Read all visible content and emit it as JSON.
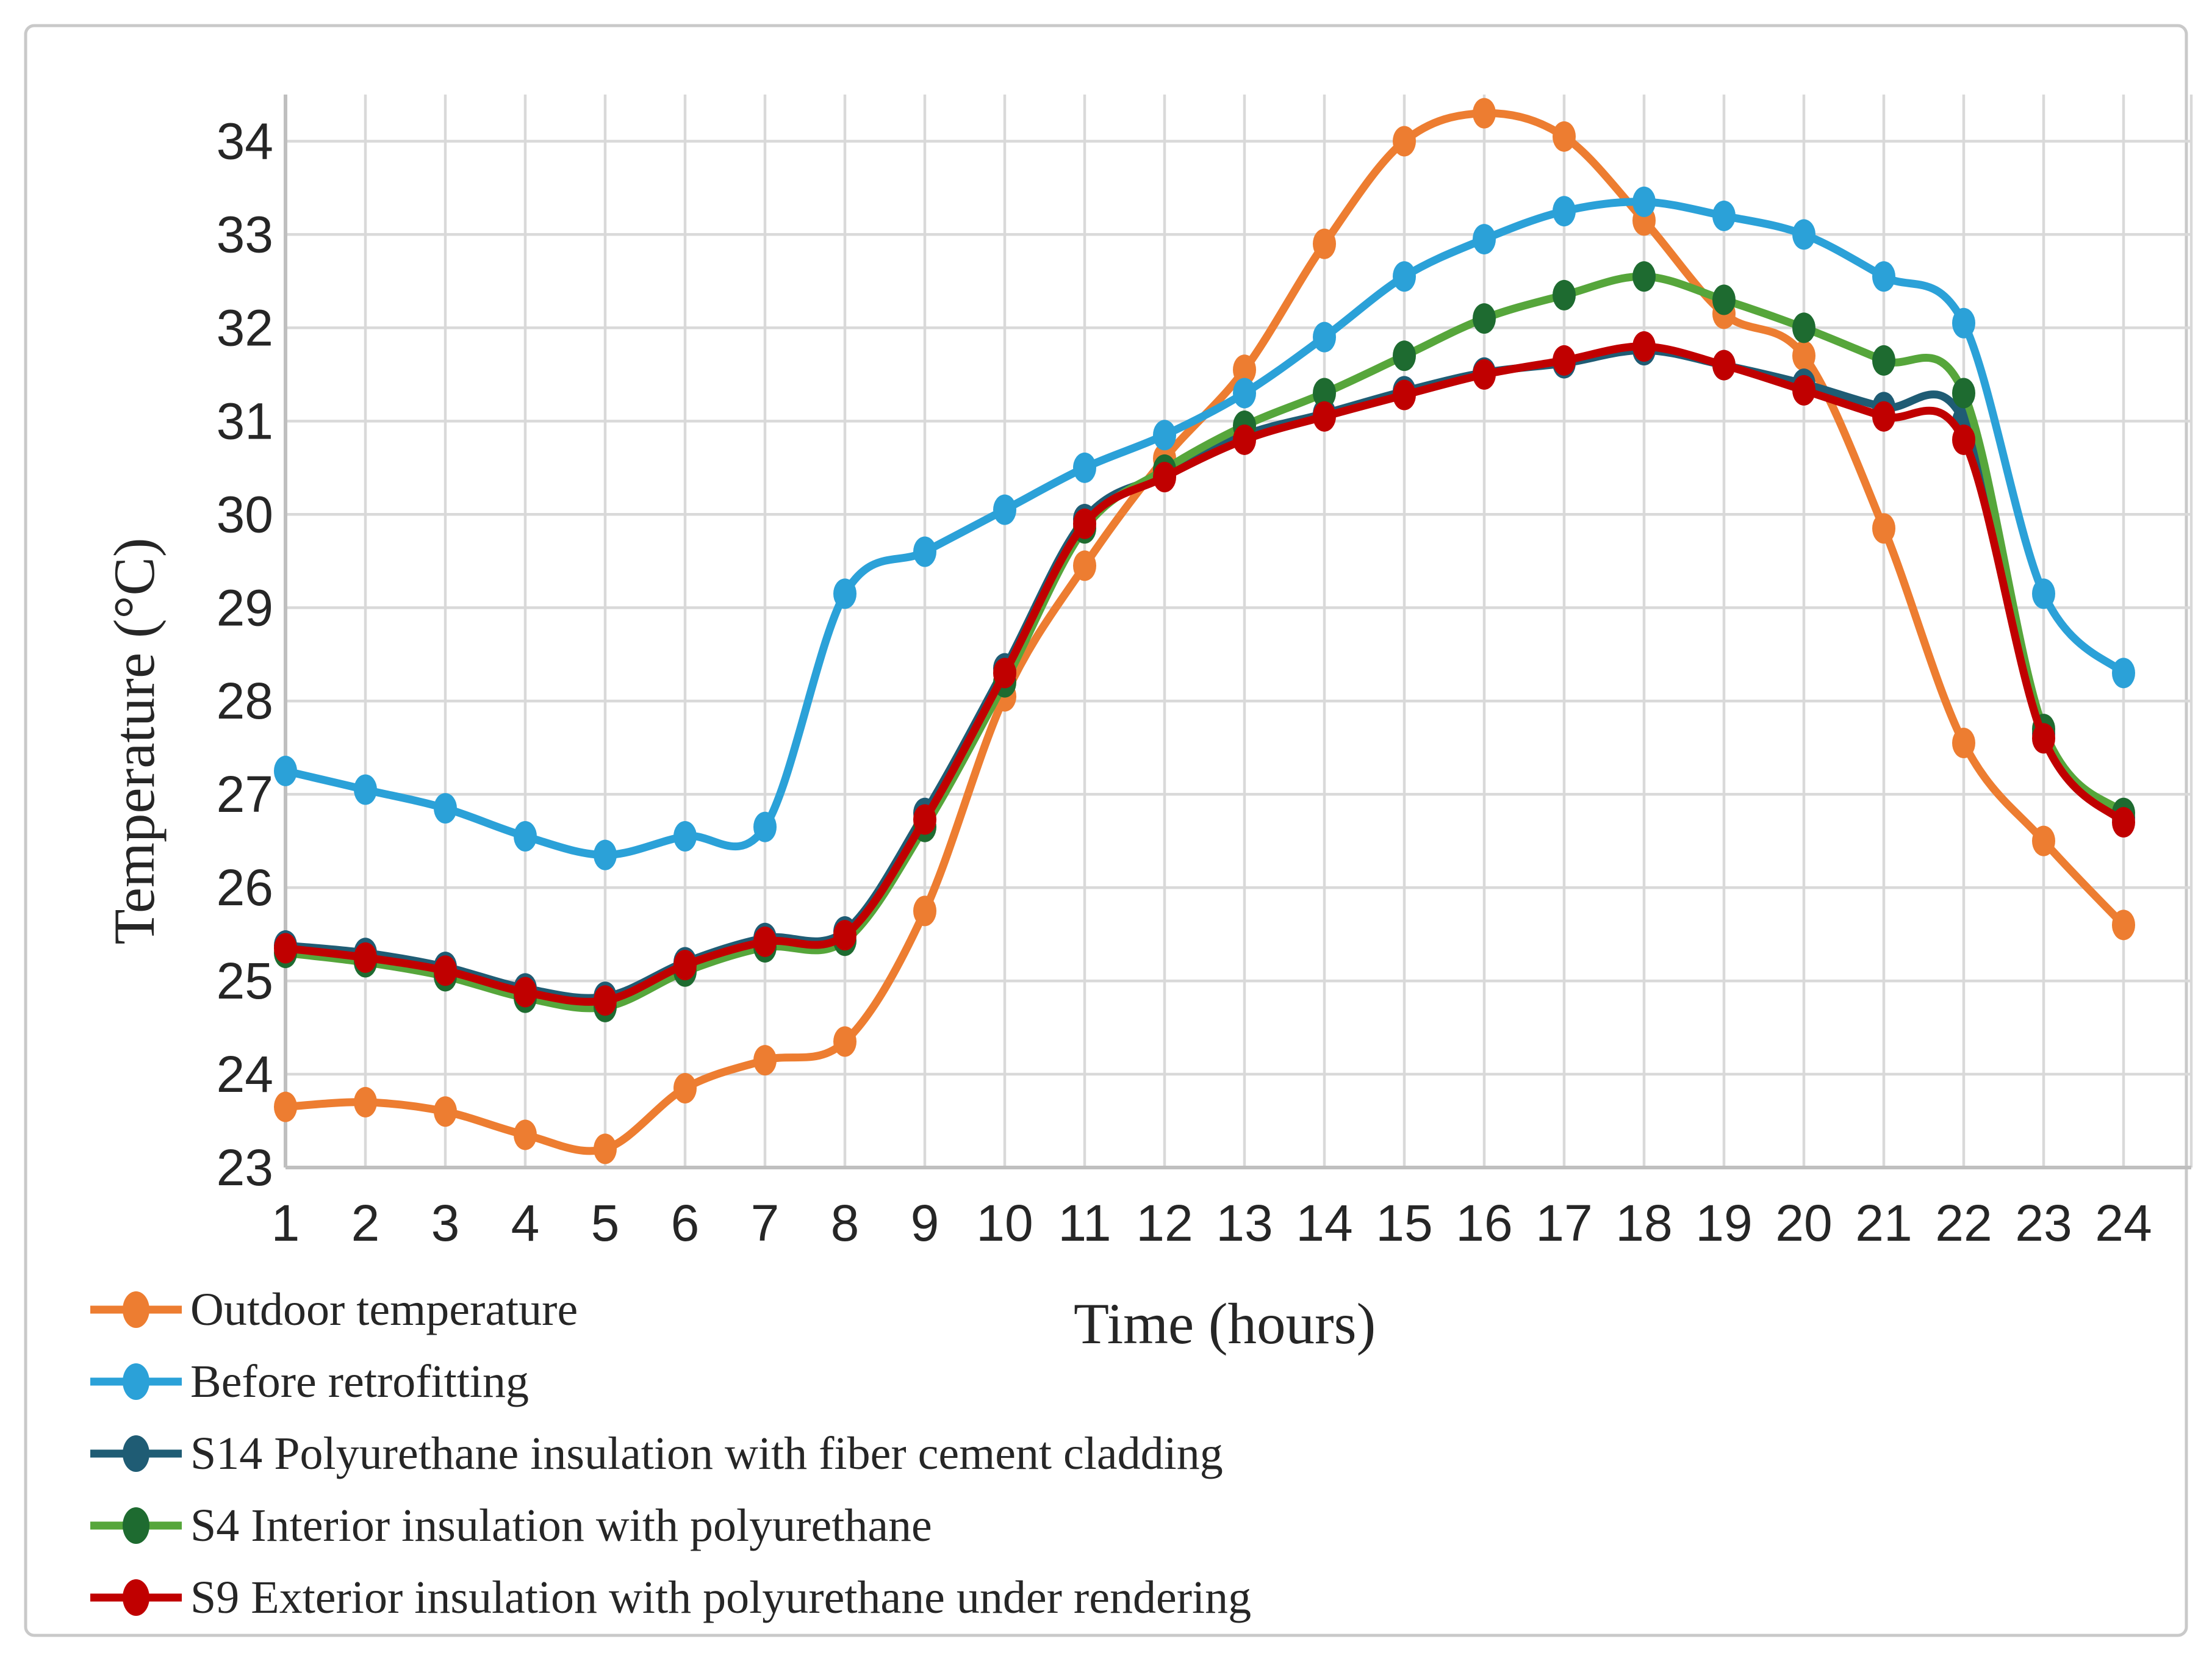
{
  "figure": {
    "background": "#ffffff",
    "border_color": "#c9c9c9"
  },
  "chart_data": {
    "type": "line",
    "smoothed": true,
    "title": "",
    "xlabel": "Time (hours)",
    "ylabel": "Temperature (°C)",
    "x": [
      1,
      2,
      3,
      4,
      5,
      6,
      7,
      8,
      9,
      10,
      11,
      12,
      13,
      14,
      15,
      16,
      17,
      18,
      19,
      20,
      21,
      22,
      23,
      24
    ],
    "x_tick_labels": [
      "1",
      "2",
      "3",
      "4",
      "5",
      "6",
      "7",
      "8",
      "9",
      "10",
      "11",
      "12",
      "13",
      "14",
      "15",
      "16",
      "17",
      "18",
      "19",
      "20",
      "21",
      "22",
      "23",
      "24"
    ],
    "y_ticks": [
      23,
      24,
      25,
      26,
      27,
      28,
      29,
      30,
      31,
      32,
      33,
      34
    ],
    "ylim": [
      23,
      34.5
    ],
    "grid": true,
    "grid_color": "#d9d9d9",
    "axis_color": "#bfbfbf",
    "legend_position": "bottom-left",
    "series": [
      {
        "name": "Outdoor temperature",
        "color": "#ED7D31",
        "marker_color": "#ED7D31",
        "values": [
          23.65,
          23.7,
          23.6,
          23.35,
          23.2,
          23.85,
          24.15,
          24.35,
          25.75,
          28.05,
          29.45,
          30.6,
          31.55,
          32.9,
          34.0,
          34.3,
          34.05,
          33.15,
          32.15,
          31.7,
          29.85,
          27.55,
          26.5,
          25.6
        ]
      },
      {
        "name": "Before retrofitting",
        "color": "#2BA1D8",
        "marker_color": "#2BA1D8",
        "values": [
          27.25,
          27.05,
          26.85,
          26.55,
          26.35,
          26.55,
          26.65,
          29.15,
          29.6,
          30.05,
          30.5,
          30.85,
          31.3,
          31.9,
          32.55,
          32.95,
          33.25,
          33.35,
          33.2,
          33.0,
          32.55,
          32.05,
          29.15,
          28.3
        ]
      },
      {
        "name": "S14 Polyurethane insulation with fiber cement cladding",
        "color": "#1F5C74",
        "marker_color": "#1F5C74",
        "values": [
          25.38,
          25.3,
          25.15,
          24.92,
          24.83,
          25.2,
          25.46,
          25.53,
          26.8,
          28.35,
          29.95,
          30.43,
          30.85,
          31.08,
          31.32,
          31.52,
          31.62,
          31.76,
          31.6,
          31.4,
          31.15,
          31.0,
          27.65,
          26.75
        ]
      },
      {
        "name": "S4 Interior insulation with polyurethane",
        "color": "#56A63B",
        "marker_color": "#1E6B30",
        "values": [
          25.3,
          25.2,
          25.05,
          24.82,
          24.72,
          25.1,
          25.36,
          25.43,
          26.65,
          28.2,
          29.85,
          30.48,
          30.95,
          31.3,
          31.7,
          32.1,
          32.35,
          32.55,
          32.3,
          32.0,
          31.65,
          31.3,
          27.7,
          26.8
        ]
      },
      {
        "name": "S9 Exterior insulation with polyurethane under rendering",
        "color": "#C00000",
        "marker_color": "#C00000",
        "values": [
          25.35,
          25.25,
          25.11,
          24.88,
          24.79,
          25.17,
          25.42,
          25.49,
          26.73,
          28.3,
          29.9,
          30.4,
          30.8,
          31.05,
          31.28,
          31.5,
          31.65,
          31.8,
          31.6,
          31.33,
          31.05,
          30.8,
          27.6,
          26.7
        ]
      }
    ]
  }
}
